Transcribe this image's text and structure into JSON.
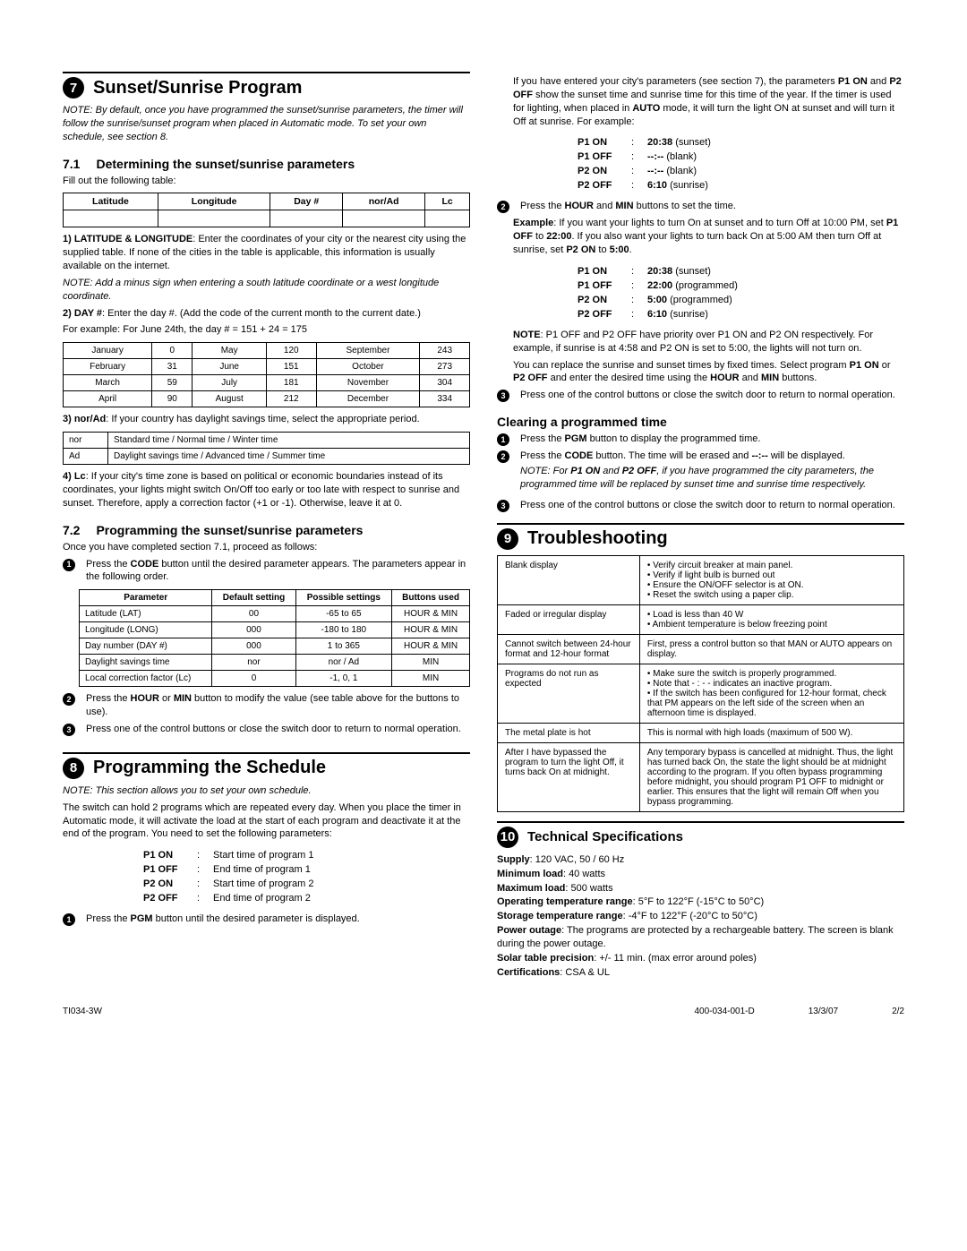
{
  "section7": {
    "num": "7",
    "title": "Sunset/Sunrise Program",
    "note": "NOTE: By default, once you have programmed the sunset/sunrise parameters, the timer will follow the sunrise/sunset program when placed in Automatic mode. To set your own schedule, see section 8.",
    "s71": {
      "num": "7.1",
      "title": "Determining the sunset/sunrise parameters",
      "intro": "Fill out the following table:",
      "headers": [
        "Latitude",
        "Longitude",
        "Day #",
        "nor/Ad",
        "Lc"
      ],
      "p1_bold": "1)   LATITUDE & LONGITUDE",
      "p1": ": Enter the coordinates of your city or the nearest city using the supplied table. If none of the cities in the table is applicable, this information is usually available on the internet.",
      "p1_note": "NOTE: Add a minus sign when entering a south latitude coordinate or a west longitude coordinate.",
      "p2_bold": "2)   DAY #",
      "p2": ": Enter the day #. (Add the code of the current month to the current date.)",
      "p2_ex": "For example: For June 24th, the day # = 151 + 24 = 175",
      "months": [
        [
          "January",
          "0",
          "May",
          "120",
          "September",
          "243"
        ],
        [
          "February",
          "31",
          "June",
          "151",
          "October",
          "273"
        ],
        [
          "March",
          "59",
          "July",
          "181",
          "November",
          "304"
        ],
        [
          "April",
          "90",
          "August",
          "212",
          "December",
          "334"
        ]
      ],
      "p3": "3) nor/Ad: If your country has daylight savings time, select the appropriate period.",
      "norad": [
        [
          "nor",
          "Standard time / Normal time / Winter time"
        ],
        [
          "Ad",
          "Daylight savings time / Advanced time / Summer time"
        ]
      ],
      "p4_bold": "4) Lc",
      "p4": ": If your city's time zone is based on political or economic boundaries instead of its coordinates, your lights might switch On/Off too early or too late with respect to sunrise and sunset. Therefore, apply a correction factor (+1 or -1). Otherwise, leave it at 0."
    },
    "s72": {
      "num": "7.2",
      "title": "Programming the sunset/sunrise parameters",
      "intro": "Once you have completed section 7.1, proceed as follows:",
      "step1": "Press the CODE button until the desired parameter appears. The parameters appear in the following order.",
      "param_headers": [
        "Parameter",
        "Default setting",
        "Possible settings",
        "Buttons used"
      ],
      "params": [
        [
          "Latitude (LAT)",
          "00",
          "-65 to 65",
          "HOUR & MIN"
        ],
        [
          "Longitude (LONG)",
          "000",
          "-180 to 180",
          "HOUR & MIN"
        ],
        [
          "Day number (DAY #)",
          "000",
          "1 to 365",
          "HOUR & MIN"
        ],
        [
          "Daylight savings time",
          "nor",
          "nor / Ad",
          "MIN"
        ],
        [
          "Local correction factor (Lc)",
          "0",
          "-1, 0, 1",
          "MIN"
        ]
      ],
      "step2": "Press the HOUR or MIN button to modify the value (see table above for the buttons to use).",
      "step3": "Press one of the control buttons or close the switch door to return to normal operation."
    }
  },
  "section8": {
    "num": "8",
    "title": "Programming the Schedule",
    "note": "NOTE: This section allows you to set your own schedule.",
    "intro": "The switch can hold 2 programs which are repeated every day. When you place the timer in Automatic mode, it will activate the load at the start of each program and deactivate it at the end of the program. You need to set the following parameters:",
    "progs": [
      [
        "P1 ON",
        ":",
        "Start time of program 1"
      ],
      [
        "P1 OFF",
        ":",
        "End time of program 1"
      ],
      [
        "P2 ON",
        ":",
        "Start time of program 2"
      ],
      [
        "P2 OFF",
        ":",
        "End time of program 2"
      ]
    ],
    "step1": "Press the PGM button until the desired parameter is displayed."
  },
  "right": {
    "intro": "If you have entered your city's parameters (see section 7), the parameters P1 ON and P2 OFF show the sunset time and sunrise time for this time of the year. If the timer is used for lighting, when placed in AUTO mode, it will turn the light ON at sunset and will turn it Off at sunrise. For example:",
    "ex1": [
      [
        "P1 ON",
        ":",
        "20:38 (sunset)"
      ],
      [
        "P1 OFF",
        ":",
        "--:-- (blank)"
      ],
      [
        "P2 ON",
        ":",
        "--:-- (blank)"
      ],
      [
        "P2 OFF",
        ":",
        "6:10 (sunrise)"
      ]
    ],
    "step2": "Press the HOUR and MIN buttons to set the time.",
    "example_label": "Example",
    "example": ": If you want your lights to turn On at sunset and to turn Off at 10:00 PM, set P1 OFF to 22:00. If you also want your lights to turn back On at 5:00 AM then turn Off at sunrise, set P2 ON to 5:00.",
    "ex2": [
      [
        "P1 ON",
        ":",
        "20:38 (sunset)"
      ],
      [
        "P1 OFF",
        ":",
        "22:00 (programmed)"
      ],
      [
        "P2 ON",
        ":",
        "5:00 (programmed)"
      ],
      [
        "P2 OFF",
        ":",
        "6:10 (sunrise)"
      ]
    ],
    "note2": "NOTE: P1 OFF and P2 OFF have priority over P1 ON and P2 ON respectively. For example, if sunrise is at 4:58 and P2 ON is set to 5:00, the lights will not turn on.",
    "note2b": "You can replace the sunrise and sunset times by fixed times. Select program P1 ON or P2 OFF and enter the desired time using the HOUR and MIN buttons.",
    "step3": "Press one of the control buttons or close the switch door to return to normal operation.",
    "clearing_title": "Clearing a programmed time",
    "clear1": "Press the PGM button to display the programmed time.",
    "clear2": "Press the CODE button. The time will be erased and --:-- will be displayed.",
    "clear2_note": "NOTE: For P1 ON and P2 OFF, if you have programmed the city parameters, the programmed time will be replaced by sunset time and sunrise time respectively.",
    "clear3": "Press one of the control buttons or close the switch door to return to normal operation."
  },
  "section9": {
    "num": "9",
    "title": "Troubleshooting",
    "rows": [
      [
        "Blank display",
        "• Verify circuit breaker at main panel.\n• Verify if light bulb is burned out\n• Ensure the ON/OFF selector is at ON.\n• Reset the switch using a paper clip."
      ],
      [
        "Faded or irregular display",
        "• Load is less than 40 W\n• Ambient temperature is below freezing point"
      ],
      [
        "Cannot switch between 24-hour format and 12-hour format",
        "First, press a control button so that MAN or AUTO appears on display."
      ],
      [
        "Programs do not run as expected",
        "• Make sure the switch is properly programmed.\n• Note that - : - - indicates an inactive program.\n• If the switch has been configured for 12-hour format, check that PM appears on the left side of the screen when an afternoon time is displayed."
      ],
      [
        "The metal plate is hot",
        "This is normal with high loads (maximum of 500 W)."
      ],
      [
        "After I have bypassed the program to turn the light Off, it turns back On at midnight.",
        "Any temporary bypass is cancelled at midnight. Thus, the light has turned back On, the state the light should be at midnight according to the program. If you often bypass programming before midnight, you should program P1 OFF to midnight or earlier. This ensures that the light will remain Off when you bypass programming."
      ]
    ]
  },
  "section10": {
    "num": "10",
    "title": "Technical Specifications",
    "specs": [
      [
        "Supply",
        ": 120 VAC, 50 / 60 Hz"
      ],
      [
        "Minimum load",
        ": 40 watts"
      ],
      [
        "Maximum load",
        ": 500 watts"
      ],
      [
        "Operating temperature range",
        ": 5°F to 122°F (-15°C to 50°C)"
      ],
      [
        "Storage temperature range",
        ": -4°F to 122°F (-20°C to 50°C)"
      ],
      [
        "Power outage",
        ": The programs are protected by a rechargeable battery. The screen is blank during the power outage."
      ],
      [
        "Solar table precision",
        ": +/- 11 min. (max error around poles)"
      ],
      [
        "Certifications",
        ": CSA & UL"
      ]
    ]
  },
  "footer": {
    "left": "TI034-3W",
    "mid": "400-034-001-D",
    "date": "13/3/07",
    "page": "2/2"
  }
}
